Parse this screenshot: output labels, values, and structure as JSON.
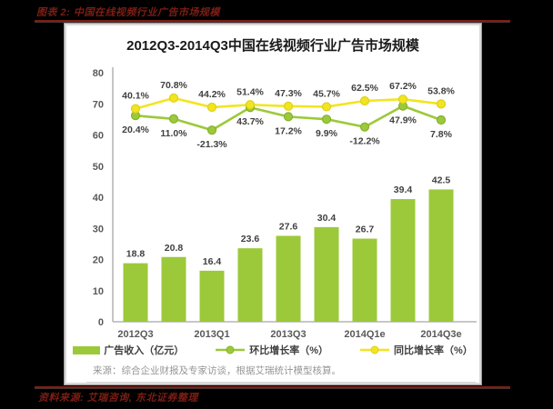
{
  "page": {
    "caption_top": "图表 2: 中国在线视频行业广告市场规模",
    "caption_bottom": "资料来源: 艾瑞咨询, 东北证券整理"
  },
  "chart_data": {
    "type": "bar+line",
    "title": "2012Q3-2014Q3中国在线视频行业广告市场规模",
    "x_tick_labels": [
      "2012Q3",
      "2013Q1",
      "2013Q3",
      "2014Q1e",
      "2014Q3e"
    ],
    "y_axis": {
      "min": 0,
      "max": 80,
      "step": 10
    },
    "grid": "off",
    "legend_position": "bottom",
    "series": [
      {
        "name": "广告收入（亿元）",
        "type": "bar",
        "values": [
          18.8,
          20.8,
          16.4,
          23.6,
          27.6,
          30.4,
          26.7,
          39.4,
          42.5
        ],
        "labels": [
          "18.8",
          "20.8",
          "16.4",
          "23.6",
          "27.6",
          "30.4",
          "26.7",
          "39.4",
          "42.5"
        ]
      },
      {
        "name": "环比增长率（%）",
        "type": "line",
        "values": [
          20.4,
          11.0,
          -21.3,
          43.7,
          17.2,
          9.9,
          -12.2,
          47.9,
          7.8
        ],
        "labels": [
          "20.4%",
          "11.0%",
          "-21.3%",
          "43.7%",
          "17.2%",
          "9.9%",
          "-12.2%",
          "47.9%",
          "7.8%"
        ]
      },
      {
        "name": "同比增长率（%）",
        "type": "line",
        "values": [
          40.1,
          70.8,
          44.2,
          51.4,
          47.3,
          45.7,
          62.5,
          67.2,
          53.8
        ],
        "labels": [
          "40.1%",
          "70.8%",
          "44.2%",
          "51.4%",
          "47.3%",
          "45.7%",
          "62.5%",
          "67.2%",
          "53.8%"
        ]
      }
    ],
    "source_note": "来源：综合企业财报及专家访谈，根据艾瑞统计模型核算。",
    "colors": {
      "bar": "#9cc93a",
      "qoq_line": "#9cc93a",
      "qoq_marker_edge": "#85b22c",
      "yoy_line": "#f2e520",
      "yoy_marker_edge": "#ddd01a",
      "value_label": "#404040",
      "axis_label": "#595959",
      "axis_line": "#a6a6a6",
      "accent_red": "#7e1e14"
    }
  }
}
